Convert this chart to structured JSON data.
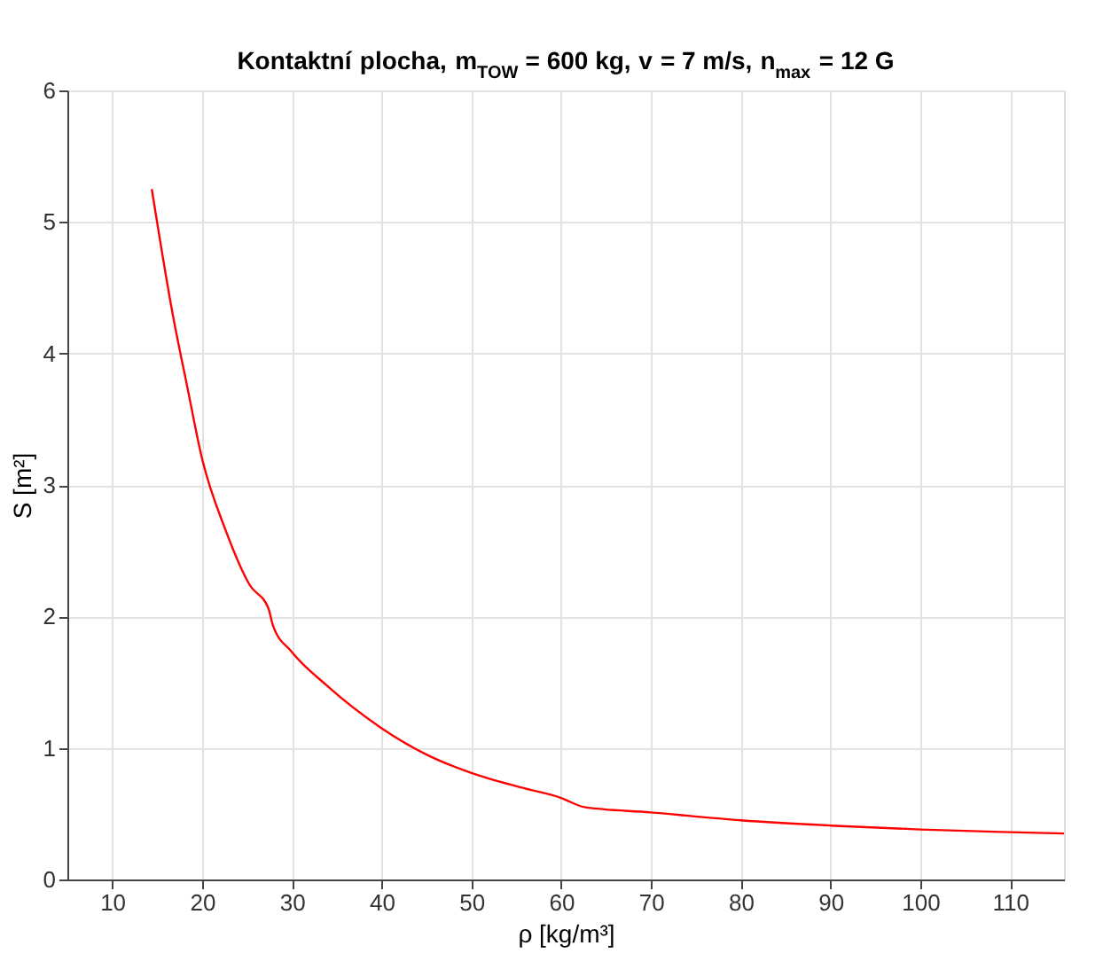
{
  "chart_data": {
    "type": "line",
    "title": "Kontaktní plocha, m$_{TOW}$ = 600 kg, v = 7 m/s, n$_{max}$ = 12 G",
    "xlabel": "ρ [kg/m³]",
    "ylabel": "S [m²]",
    "x": [
      14.4,
      16.7,
      18.4,
      20,
      22.6,
      25.3,
      27.4,
      27.9,
      30,
      33.8,
      40,
      45,
      50,
      55.5,
      60,
      62.6,
      70,
      80,
      90,
      100,
      110,
      116
    ],
    "series": [
      {
        "color": "#ff0000",
        "values": [
          5.25,
          4.31,
          3.73,
          3.2,
          2.66,
          2.24,
          2.06,
          1.93,
          1.73,
          1.48,
          1.15,
          0.95,
          0.81,
          0.7,
          0.62,
          0.55,
          0.51,
          0.45,
          0.41,
          0.38,
          0.36,
          0.35
        ]
      }
    ],
    "xlim": [
      5,
      116
    ],
    "xticks": [
      10,
      20,
      30,
      40,
      50,
      60,
      70,
      80,
      90,
      100,
      110
    ],
    "ylim": [
      0,
      6
    ],
    "yticks": [
      0,
      1,
      2,
      3,
      4,
      5,
      6
    ],
    "grid": true,
    "legend": false,
    "marker": "none",
    "line_style": "solid"
  }
}
